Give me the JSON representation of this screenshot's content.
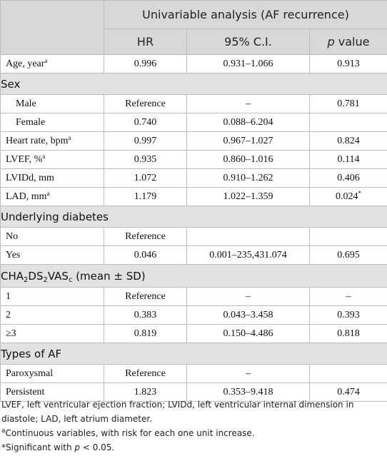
{
  "header": {
    "group": "Univariable analysis (AF recurrence)",
    "hr": "HR",
    "ci": "95% C.I.",
    "p_italic": "p",
    "p_rest": " value"
  },
  "age": {
    "label": "Age, year",
    "sup": "a",
    "hr": "0.996",
    "ci": "0.931–1.066",
    "p": "0.913"
  },
  "sex": {
    "title": "Sex",
    "male": {
      "label": "Male",
      "hr": "Reference",
      "ci": "–",
      "p": "0.781"
    },
    "female": {
      "label": "Female",
      "hr": "0.740",
      "ci": "0.088–6.204",
      "p": ""
    }
  },
  "heart_rate": {
    "label": "Heart rate, bpm",
    "sup": "a",
    "hr": "0.997",
    "ci": "0.967–1.027",
    "p": "0.824"
  },
  "lvef": {
    "label": "LVEF, %",
    "sup": "a",
    "hr": "0.935",
    "ci": "0.860–1.016",
    "p": "0.114"
  },
  "lvidd": {
    "label": "LVIDd, mm",
    "hr": "1.072",
    "ci": "0.910–1.262",
    "p": "0.406"
  },
  "lad": {
    "label": "LAD, mm",
    "sup": "a",
    "hr": "1.179",
    "ci": "1.022–1.359",
    "p": "0.024",
    "p_sup": "*"
  },
  "diabetes": {
    "title": "Underlying diabetes",
    "no": {
      "label": "No",
      "hr": "Reference",
      "ci": "",
      "p": ""
    },
    "yes": {
      "label": "Yes",
      "hr": "0.046",
      "ci": "0.001–235,431.074",
      "p": "0.695"
    }
  },
  "cha2ds2": {
    "title_a": "CHA",
    "sub1": "2",
    "title_b": "DS",
    "sub2": "2",
    "title_c": "VAS",
    "sub3": "c",
    "title_d": " (mean ± SD)",
    "r1": {
      "label": "1",
      "hr": "Reference",
      "ci": "–",
      "p": "–"
    },
    "r2": {
      "label": "2",
      "hr": "0.383",
      "ci": "0.043–3.458",
      "p": "0.393"
    },
    "r3": {
      "label": "≥3",
      "hr": "0.819",
      "ci": "0.150–4.486",
      "p": "0.818"
    }
  },
  "types": {
    "title": "Types of AF",
    "paroxysmal": {
      "label": "Paroxysmal",
      "hr": "Reference",
      "ci": "–",
      "p": ""
    },
    "persistent": {
      "label": "Persistent",
      "hr": "1.823",
      "ci": "0.353–9.418",
      "p": "0.474"
    }
  },
  "notes": {
    "abbrev": "LVEF, left ventricular ejection fraction; LVIDd, left ventricular internal dimension in diastole; LAD, left atrium diameter.",
    "a_sup": "a",
    "a_text": "Continuous variables, with risk for each one unit increase.",
    "sig_a": "*Significant with ",
    "sig_p": "p",
    "sig_b": " < 0.05."
  }
}
